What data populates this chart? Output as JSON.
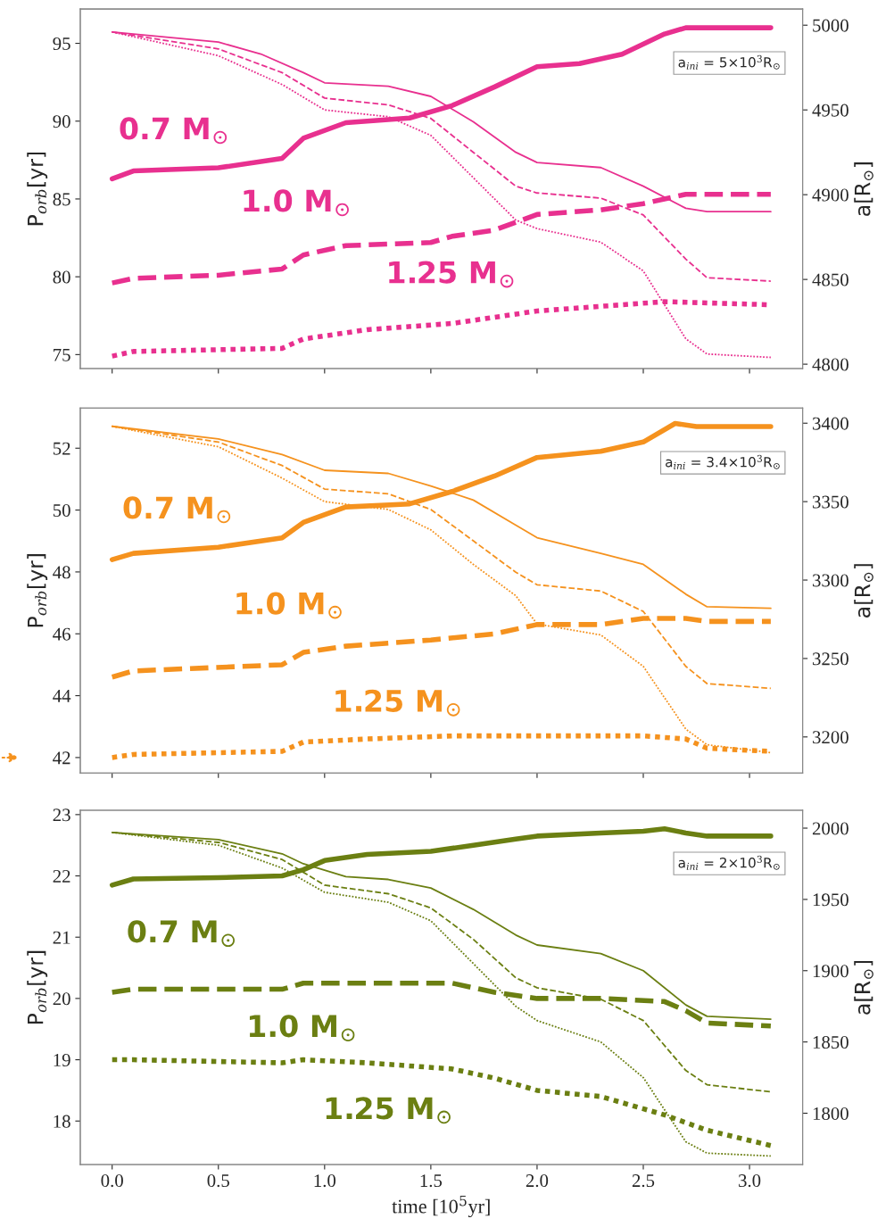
{
  "chart_data": [
    {
      "type": "line",
      "ylabel": "P$_{orb}$[yr]",
      "y2label": "a[R$_{⊙}$]",
      "xlim": [
        -0.15,
        3.25
      ],
      "xticks": [
        {
          "value": 0,
          "label": null
        },
        {
          "value": 0.5,
          "label": null
        },
        {
          "value": 1,
          "label": null
        },
        {
          "value": 1.5,
          "label": null
        },
        {
          "value": 2,
          "label": null
        },
        {
          "value": 2.5,
          "label": null
        },
        {
          "value": 3,
          "label": null
        }
      ],
      "ylim": [
        74.1,
        97.2
      ],
      "yticks": [
        75,
        80,
        85,
        90,
        95
      ],
      "y2lim": [
        4797.4,
        5009.5
      ],
      "y2ticks": [
        4800,
        4850,
        4900,
        4950,
        5000
      ],
      "tick_labels": "y",
      "annotations": [
        "a$_{ini}$ = 5×10$^{3}$R$_{⊙}$",
        "0.7 M$_{⊙}$",
        "1.0 M$_{⊙}$",
        "1.25 M$_{⊙}$"
      ],
      "series": [
        {
          "color": "#e8308f",
          "axis": "y",
          "line_style": "solid",
          "x": [
            0,
            0.1,
            0.5,
            0.8,
            0.9,
            1.1,
            1.4,
            1.6,
            1.8,
            2.0,
            2.2,
            2.4,
            2.6,
            2.7,
            3.1
          ],
          "values": [
            86.3,
            86.8,
            87.0,
            87.6,
            88.9,
            89.9,
            90.2,
            91.0,
            92.2,
            93.5,
            93.7,
            94.3,
            95.6,
            96.0,
            96.0
          ]
        },
        {
          "color": "#e8308f",
          "axis": "y",
          "line_style": "dashed",
          "x": [
            0,
            0.1,
            0.5,
            0.8,
            0.9,
            1.1,
            1.5,
            1.6,
            1.8,
            2.0,
            2.3,
            2.5,
            2.7,
            3.1
          ],
          "values": [
            79.6,
            79.9,
            80.1,
            80.5,
            81.4,
            82.0,
            82.2,
            82.6,
            83.0,
            84.0,
            84.3,
            84.7,
            85.3,
            85.3
          ]
        },
        {
          "color": "#e8308f",
          "axis": "y",
          "line_style": "dotted",
          "x": [
            0,
            0.1,
            0.8,
            0.9,
            1.2,
            1.6,
            2.0,
            2.4,
            2.6,
            3.1
          ],
          "values": [
            74.9,
            75.2,
            75.4,
            76.0,
            76.6,
            77.0,
            77.8,
            78.2,
            78.4,
            78.2
          ]
        },
        {
          "color": "#e8308f",
          "axis": "y2",
          "line_style": "solid",
          "x": [
            0,
            0.5,
            0.7,
            0.9,
            1.0,
            1.3,
            1.5,
            1.7,
            1.9,
            2.0,
            2.3,
            2.5,
            2.7,
            2.8,
            3.1
          ],
          "values": [
            4996,
            4990,
            4983,
            4972,
            4966,
            4964,
            4958,
            4943,
            4925,
            4919,
            4916,
            4905,
            4892,
            4890,
            4890
          ]
        },
        {
          "color": "#e8308f",
          "axis": "y2",
          "line_style": "dashed",
          "x": [
            0,
            0.5,
            0.8,
            1.0,
            1.3,
            1.5,
            1.7,
            1.9,
            2.0,
            2.3,
            2.5,
            2.7,
            2.8,
            3.1
          ],
          "values": [
            4996,
            4986,
            4972,
            4957,
            4953,
            4945,
            4925,
            4905,
            4901,
            4898,
            4888,
            4862,
            4851,
            4849
          ]
        },
        {
          "color": "#e8308f",
          "axis": "y2",
          "line_style": "dotted",
          "x": [
            0,
            0.5,
            0.8,
            1.0,
            1.3,
            1.5,
            1.7,
            1.9,
            2.0,
            2.3,
            2.5,
            2.7,
            2.8,
            3.1
          ],
          "values": [
            4996,
            4982,
            4965,
            4950,
            4946,
            4935,
            4910,
            4885,
            4880,
            4872,
            4855,
            4815,
            4806,
            4804
          ]
        }
      ]
    },
    {
      "type": "line",
      "ylabel": "P$_{orb}$[yr]",
      "y2label": "a[R$_{⊙}$]",
      "xlim": [
        -0.15,
        3.25
      ],
      "xticks": [
        {
          "value": 0,
          "label": null
        },
        {
          "value": 0.5,
          "label": null
        },
        {
          "value": 1,
          "label": null
        },
        {
          "value": 1.5,
          "label": null
        },
        {
          "value": 2,
          "label": null
        },
        {
          "value": 2.5,
          "label": null
        },
        {
          "value": 3,
          "label": null
        }
      ],
      "ylim": [
        41.5,
        53.3
      ],
      "yticks": [
        42,
        44,
        46,
        48,
        50,
        52
      ],
      "y2lim": [
        3177,
        3409.7
      ],
      "y2ticks": [
        3200,
        3250,
        3300,
        3350,
        3400
      ],
      "tick_labels": "y",
      "annotations": [
        "a$_{ini}$ = 3.4×10$^{3}$R$_{⊙}$",
        "0.7 M$_{⊙}$",
        "1.0 M$_{⊙}$",
        "1.25 M$_{⊙}$"
      ],
      "series": [
        {
          "color": "#f5921e",
          "axis": "y",
          "line_style": "solid",
          "x": [
            0,
            0.1,
            0.5,
            0.8,
            0.9,
            1.1,
            1.4,
            1.6,
            1.8,
            2.0,
            2.3,
            2.5,
            2.65,
            2.75,
            3.1
          ],
          "values": [
            48.4,
            48.6,
            48.8,
            49.1,
            49.6,
            50.1,
            50.2,
            50.6,
            51.1,
            51.7,
            51.9,
            52.2,
            52.8,
            52.7,
            52.7
          ]
        },
        {
          "color": "#f5921e",
          "axis": "y",
          "line_style": "dashed",
          "x": [
            0,
            0.1,
            0.8,
            0.9,
            1.1,
            1.5,
            1.8,
            2.0,
            2.3,
            2.5,
            2.7,
            2.8,
            3.1
          ],
          "values": [
            44.6,
            44.8,
            45.0,
            45.4,
            45.6,
            45.8,
            46.0,
            46.3,
            46.3,
            46.5,
            46.5,
            46.4,
            46.4
          ]
        },
        {
          "color": "#f5921e",
          "axis": "y",
          "line_style": "dotted",
          "x": [
            0,
            0.1,
            0.8,
            0.9,
            1.2,
            1.6,
            2.0,
            2.5,
            2.7,
            2.8,
            3.1
          ],
          "values": [
            42.0,
            42.1,
            42.2,
            42.5,
            42.6,
            42.7,
            42.7,
            42.7,
            42.6,
            42.3,
            42.2
          ]
        },
        {
          "color": "#f5921e",
          "axis": "y2",
          "line_style": "solid",
          "x": [
            0,
            0.5,
            0.8,
            1.0,
            1.3,
            1.5,
            1.7,
            1.9,
            2.0,
            2.3,
            2.5,
            2.7,
            2.8,
            3.1
          ],
          "values": [
            3398,
            3390,
            3380,
            3370,
            3368,
            3360,
            3351,
            3335,
            3327,
            3317,
            3310,
            3291,
            3283,
            3282
          ]
        },
        {
          "color": "#f5921e",
          "axis": "y2",
          "line_style": "dashed",
          "x": [
            0,
            0.5,
            0.8,
            1.0,
            1.3,
            1.5,
            1.7,
            1.9,
            2.0,
            2.3,
            2.5,
            2.7,
            2.8,
            3.1
          ],
          "values": [
            3398,
            3388,
            3373,
            3358,
            3355,
            3345,
            3325,
            3305,
            3297,
            3293,
            3280,
            3245,
            3234,
            3231
          ]
        },
        {
          "color": "#f5921e",
          "axis": "y2",
          "line_style": "dotted",
          "x": [
            0,
            0.5,
            0.8,
            1.0,
            1.3,
            1.5,
            1.7,
            1.9,
            2.0,
            2.3,
            2.5,
            2.7,
            2.8,
            3.1
          ],
          "values": [
            3398,
            3385,
            3365,
            3350,
            3345,
            3332,
            3310,
            3290,
            3272,
            3265,
            3245,
            3205,
            3195,
            3190
          ]
        }
      ]
    },
    {
      "type": "line",
      "xlabel": "time [10$^{5}$yr]",
      "ylabel": "P$_{orb}$[yr]",
      "y2label": "a[R$_{⊙}$]",
      "xlim": [
        -0.15,
        3.25
      ],
      "xticks": [
        {
          "value": 0,
          "label": "0.0"
        },
        {
          "value": 0.5,
          "label": "0.5"
        },
        {
          "value": 1,
          "label": "1.0"
        },
        {
          "value": 1.5,
          "label": "1.5"
        },
        {
          "value": 2,
          "label": "2.0"
        },
        {
          "value": 2.5,
          "label": "2.5"
        },
        {
          "value": 3,
          "label": "3.0"
        }
      ],
      "ylim": [
        17.29,
        23.07
      ],
      "yticks": [
        18,
        19,
        20,
        21,
        22,
        23
      ],
      "y2lim": [
        1764,
        2012.5
      ],
      "y2ticks": [
        1800,
        1850,
        1900,
        1950,
        2000
      ],
      "annotations": [
        "a$_{ini}$ = 2×10$^{3}$R$_{⊙}$",
        "0.7 M$_{⊙}$",
        "1.0 M$_{⊙}$",
        "1.25 M$_{⊙}$"
      ],
      "series": [
        {
          "color": "#6b7f12",
          "axis": "y",
          "line_style": "solid",
          "x": [
            0,
            0.1,
            0.5,
            0.8,
            0.9,
            1.0,
            1.2,
            1.5,
            1.7,
            1.9,
            2.0,
            2.3,
            2.5,
            2.6,
            2.7,
            2.8,
            3.1
          ],
          "values": [
            21.85,
            21.95,
            21.97,
            22.0,
            22.1,
            22.25,
            22.35,
            22.4,
            22.5,
            22.6,
            22.65,
            22.7,
            22.73,
            22.77,
            22.7,
            22.65,
            22.65
          ]
        },
        {
          "color": "#6b7f12",
          "axis": "y",
          "line_style": "dashed",
          "x": [
            0,
            0.1,
            0.8,
            0.9,
            1.2,
            1.6,
            1.8,
            2.0,
            2.3,
            2.6,
            2.7,
            2.8,
            3.1
          ],
          "values": [
            20.1,
            20.15,
            20.15,
            20.25,
            20.25,
            20.25,
            20.1,
            20.0,
            20.0,
            19.95,
            19.8,
            19.6,
            19.55
          ]
        },
        {
          "color": "#6b7f12",
          "axis": "y",
          "line_style": "dotted",
          "x": [
            0,
            0.1,
            0.8,
            0.9,
            1.2,
            1.6,
            1.8,
            2.0,
            2.3,
            2.6,
            2.8,
            3.1
          ],
          "values": [
            19.0,
            19.0,
            18.95,
            19.0,
            18.95,
            18.85,
            18.7,
            18.5,
            18.4,
            18.1,
            17.85,
            17.6
          ]
        },
        {
          "color": "#6b7f12",
          "axis": "y2",
          "line_style": "solid",
          "x": [
            0,
            0.5,
            0.8,
            0.9,
            1.1,
            1.3,
            1.5,
            1.7,
            1.9,
            2.0,
            2.3,
            2.5,
            2.7,
            2.8,
            3.1
          ],
          "values": [
            1997,
            1992,
            1982,
            1975,
            1966,
            1964,
            1958,
            1943,
            1925,
            1918,
            1912,
            1900,
            1876,
            1868,
            1866
          ]
        },
        {
          "color": "#6b7f12",
          "axis": "y2",
          "line_style": "dashed",
          "x": [
            0,
            0.5,
            0.8,
            1.0,
            1.3,
            1.5,
            1.7,
            1.9,
            2.0,
            2.3,
            2.5,
            2.7,
            2.8,
            3.1
          ],
          "values": [
            1997,
            1990,
            1978,
            1960,
            1954,
            1944,
            1922,
            1895,
            1888,
            1880,
            1865,
            1830,
            1820,
            1815
          ]
        },
        {
          "color": "#6b7f12",
          "axis": "y2",
          "line_style": "dotted",
          "x": [
            0,
            0.5,
            0.8,
            1.0,
            1.3,
            1.5,
            1.7,
            1.9,
            2.0,
            2.3,
            2.5,
            2.7,
            2.8,
            3.1
          ],
          "values": [
            1997,
            1988,
            1972,
            1955,
            1948,
            1935,
            1905,
            1875,
            1865,
            1850,
            1825,
            1780,
            1772,
            1770
          ]
        }
      ]
    }
  ]
}
